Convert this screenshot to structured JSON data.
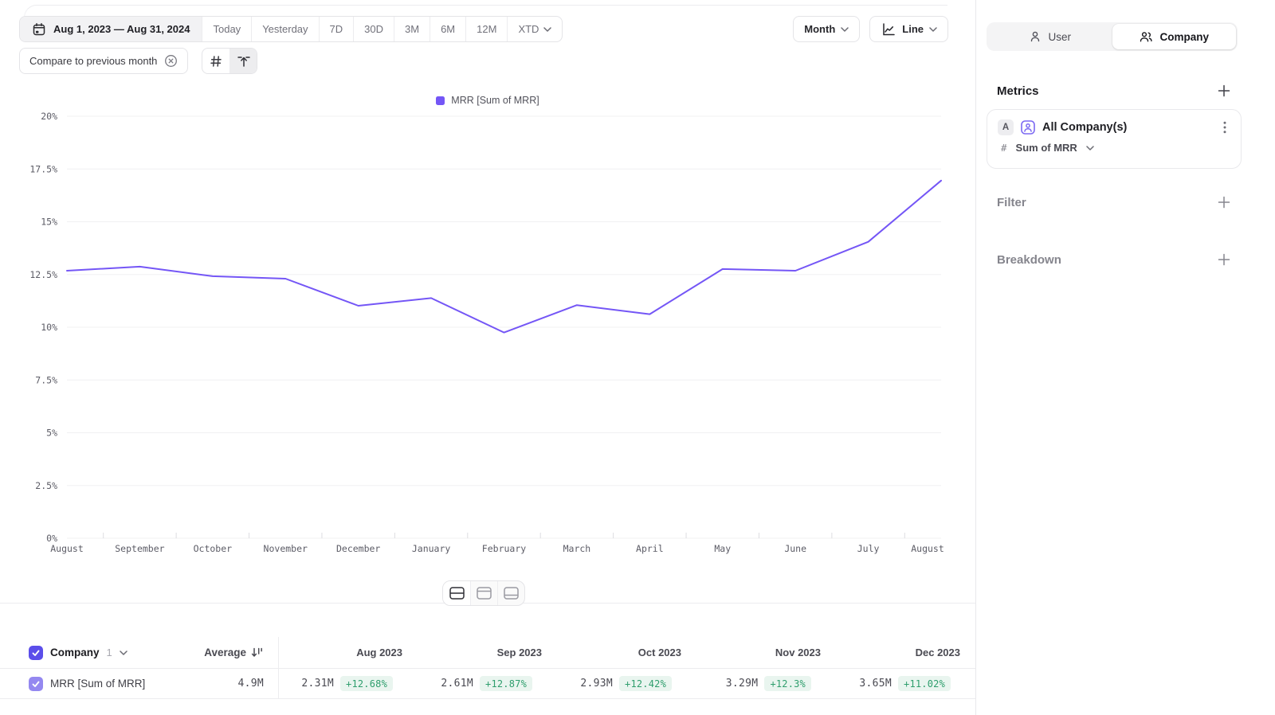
{
  "toolbar": {
    "date_range": "Aug 1, 2023 — Aug 31, 2024",
    "presets": [
      "Today",
      "Yesterday",
      "7D",
      "30D",
      "3M",
      "6M",
      "12M"
    ],
    "xtd": "XTD",
    "granularity": "Month",
    "chart_type": "Line",
    "compare_chip": "Compare to previous month"
  },
  "chart_data": {
    "type": "line",
    "title": "",
    "legend": "MRR [Sum of MRR]",
    "legend_position": "top",
    "grid": true,
    "categories": [
      "August",
      "September",
      "October",
      "November",
      "December",
      "January",
      "February",
      "March",
      "April",
      "May",
      "June",
      "July",
      "August"
    ],
    "series": [
      {
        "name": "MRR [Sum of MRR]",
        "color": "#7456f6",
        "values": [
          12.68,
          12.87,
          12.42,
          12.3,
          11.02,
          11.38,
          9.75,
          11.05,
          10.62,
          12.76,
          12.68,
          14.05,
          16.95
        ]
      }
    ],
    "ylim": [
      0,
      20
    ],
    "y_ticks": [
      {
        "value": 20,
        "label": "20%"
      },
      {
        "value": 17.5,
        "label": "17.5%"
      },
      {
        "value": 15,
        "label": "15%"
      },
      {
        "value": 12.5,
        "label": "12.5%"
      },
      {
        "value": 10,
        "label": "10%"
      },
      {
        "value": 7.5,
        "label": "7.5%"
      },
      {
        "value": 5,
        "label": "5%"
      },
      {
        "value": 2.5,
        "label": "2.5%"
      },
      {
        "value": 0,
        "label": "0%"
      }
    ]
  },
  "table": {
    "group_label": "Company",
    "group_count": "1",
    "average_label": "Average",
    "columns": [
      "Aug 2023",
      "Sep 2023",
      "Oct 2023",
      "Nov 2023",
      "Dec 2023"
    ],
    "row": {
      "label": "MRR [Sum of MRR]",
      "average": "4.9M",
      "cells": [
        {
          "value": "2.31M",
          "change": "+12.68%"
        },
        {
          "value": "2.61M",
          "change": "+12.87%"
        },
        {
          "value": "2.93M",
          "change": "+12.42%"
        },
        {
          "value": "3.29M",
          "change": "+12.3%"
        },
        {
          "value": "3.65M",
          "change": "+11.02%"
        }
      ]
    },
    "positive_color": "#2f9e6d",
    "positive_bg": "#e9f5ef"
  },
  "sidebar": {
    "tabs": [
      {
        "label": "User",
        "active": false
      },
      {
        "label": "Company",
        "active": true
      }
    ],
    "metrics_title": "Metrics",
    "metric_card": {
      "badge": "A",
      "name": "All Company(s)",
      "aggregation_prefix": "#",
      "aggregation": "Sum of MRR"
    },
    "filter_label": "Filter",
    "breakdown_label": "Breakdown"
  },
  "colors": {
    "accent": "#5b4eea",
    "accent_light": "#9488f0",
    "line": "#7456f6"
  }
}
